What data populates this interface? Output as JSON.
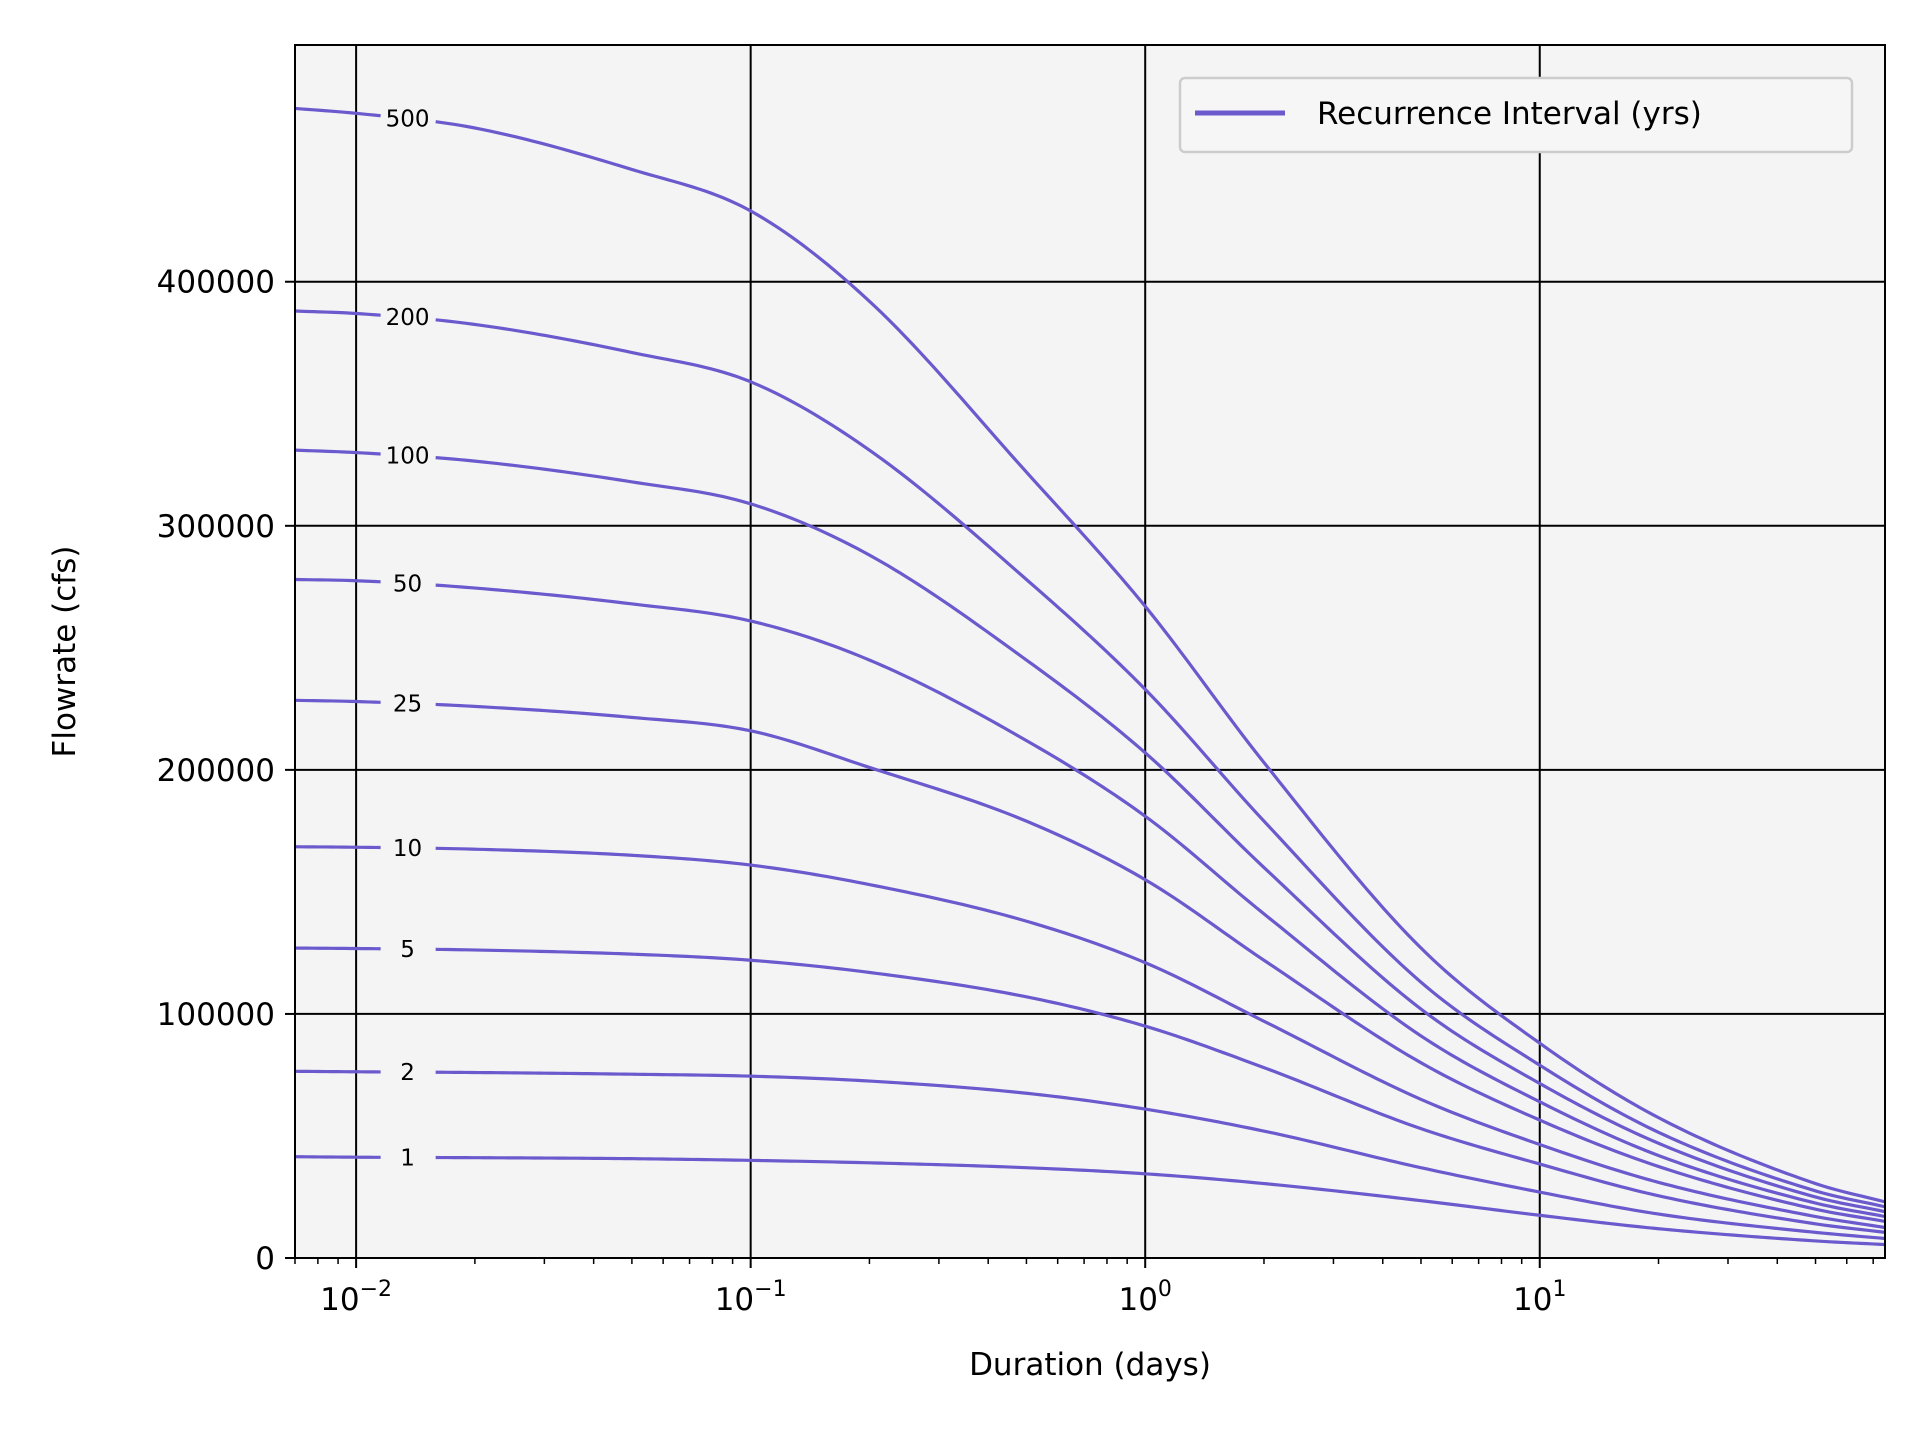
{
  "chart_data": {
    "type": "line",
    "xlabel": "Duration (days)",
    "ylabel": "Flowrate (cfs)",
    "xscale": "log",
    "xlim": [
      0.007,
      75
    ],
    "ylim": [
      0,
      497000
    ],
    "xticks": [
      {
        "value": 0.01,
        "base": "10",
        "exp": "−2"
      },
      {
        "value": 0.1,
        "base": "10",
        "exp": "−1"
      },
      {
        "value": 1,
        "base": "10",
        "exp": "0"
      },
      {
        "value": 10,
        "base": "10",
        "exp": "1"
      }
    ],
    "yticks": [
      {
        "value": 0,
        "label": "0"
      },
      {
        "value": 100000,
        "label": "100000"
      },
      {
        "value": 200000,
        "label": "200000"
      },
      {
        "value": 300000,
        "label": "300000"
      },
      {
        "value": 400000,
        "label": "400000"
      }
    ],
    "grid": true,
    "legend": {
      "position": "top-right",
      "entries": [
        "Recurrence Interval (yrs)"
      ]
    },
    "colors": {
      "line": "#6a5acd",
      "background": "#f4f4f4",
      "grid": "#000000"
    },
    "x": [
      0.007,
      0.01,
      0.02,
      0.05,
      0.1,
      0.2,
      0.5,
      1,
      2,
      5,
      10,
      20,
      50,
      75
    ],
    "series": [
      {
        "label": "1",
        "values": [
          41500,
          41300,
          41100,
          40700,
          40000,
          39000,
          37000,
          34500,
          30500,
          23500,
          17500,
          12000,
          7000,
          5500
        ]
      },
      {
        "label": "2",
        "values": [
          76500,
          76300,
          76000,
          75300,
          74500,
          72500,
          67500,
          61000,
          52000,
          37000,
          27000,
          18000,
          10500,
          8000
        ]
      },
      {
        "label": "5",
        "values": [
          127000,
          126800,
          126200,
          124500,
          122000,
          117000,
          107000,
          95000,
          78000,
          53000,
          38500,
          25500,
          14000,
          10500
        ]
      },
      {
        "label": "10",
        "values": [
          168500,
          168300,
          167500,
          165000,
          161000,
          153000,
          138000,
          121000,
          97000,
          65000,
          46500,
          31000,
          17000,
          12500
        ]
      },
      {
        "label": "25",
        "values": [
          228500,
          228000,
          226000,
          221500,
          216000,
          201000,
          179000,
          155000,
          122000,
          80000,
          56500,
          37500,
          20000,
          15000
        ]
      },
      {
        "label": "50",
        "values": [
          278000,
          277500,
          274500,
          268000,
          261000,
          245000,
          212000,
          181000,
          141000,
          91000,
          64000,
          42000,
          22500,
          17000
        ]
      },
      {
        "label": "100",
        "values": [
          331000,
          330000,
          326500,
          318000,
          309000,
          288000,
          245000,
          207000,
          160000,
          102000,
          71500,
          47000,
          25000,
          19000
        ]
      },
      {
        "label": "200",
        "values": [
          388000,
          387000,
          382500,
          371000,
          359000,
          331000,
          278000,
          233000,
          179000,
          113000,
          79000,
          51500,
          27500,
          21000
        ]
      },
      {
        "label": "500",
        "values": [
          471000,
          469000,
          463000,
          446000,
          429000,
          392000,
          322000,
          267000,
          203000,
          127000,
          88000,
          57500,
          30500,
          23000
        ]
      }
    ]
  }
}
